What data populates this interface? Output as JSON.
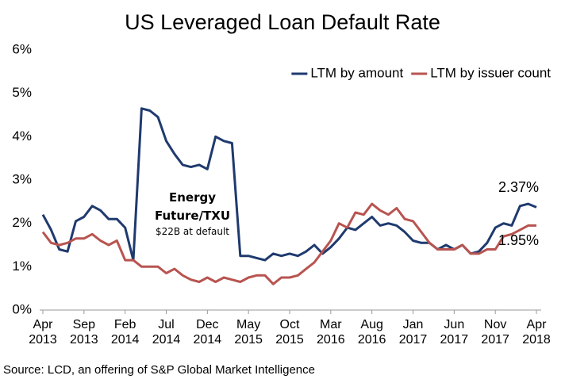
{
  "chart_data": {
    "type": "line",
    "title": "US Leveraged Loan Default Rate",
    "source": "Source: LCD, an offering of S&P Global Market Intelligence",
    "categories": [
      "Apr 2013",
      null,
      null,
      null,
      null,
      "Sep 2013",
      null,
      null,
      null,
      null,
      "Feb 2014",
      null,
      null,
      null,
      null,
      "Jul 2014",
      null,
      null,
      null,
      null,
      "Dec 2014",
      null,
      null,
      null,
      null,
      "May 2015",
      null,
      null,
      null,
      null,
      "Oct 2015",
      null,
      null,
      null,
      null,
      "Mar 2016",
      null,
      null,
      null,
      null,
      "Aug 2016",
      null,
      null,
      null,
      null,
      "Jan 2017",
      null,
      null,
      null,
      null,
      "Jun 2017",
      null,
      null,
      null,
      null,
      "Nov 2017",
      null,
      null,
      null,
      null,
      "Apr 2018"
    ],
    "series": [
      {
        "name": "LTM by amount",
        "color": "#1f3a6e",
        "values": [
          2.2,
          1.85,
          1.4,
          1.35,
          2.05,
          2.15,
          2.4,
          2.3,
          2.1,
          2.1,
          1.9,
          1.15,
          4.65,
          4.6,
          4.45,
          3.9,
          3.6,
          3.35,
          3.3,
          3.35,
          3.25,
          4.0,
          3.9,
          3.85,
          1.25,
          1.25,
          1.2,
          1.15,
          1.3,
          1.25,
          1.3,
          1.25,
          1.35,
          1.5,
          1.3,
          1.45,
          1.65,
          1.9,
          1.85,
          2.0,
          2.15,
          1.95,
          2.0,
          1.95,
          1.8,
          1.6,
          1.55,
          1.55,
          1.4,
          1.5,
          1.4,
          1.5,
          1.3,
          1.35,
          1.55,
          1.9,
          2.0,
          1.95,
          2.4,
          2.45,
          2.37
        ],
        "value_labels": [
          null,
          null,
          null,
          null,
          null,
          null,
          null,
          null,
          null,
          null,
          null,
          null,
          null,
          null,
          null,
          null,
          null,
          null,
          null,
          null,
          null,
          null,
          null,
          null,
          null,
          null,
          null,
          null,
          null,
          null,
          null,
          null,
          null,
          null,
          null,
          null,
          null,
          null,
          null,
          null,
          null,
          null,
          null,
          null,
          null,
          null,
          null,
          null,
          null,
          null,
          null,
          null,
          null,
          null,
          null,
          null,
          null,
          null,
          null,
          null,
          "2.37%"
        ]
      },
      {
        "name": "LTM by issuer count",
        "color": "#b85450",
        "values": [
          1.8,
          1.55,
          1.5,
          1.55,
          1.65,
          1.65,
          1.75,
          1.6,
          1.5,
          1.6,
          1.15,
          1.15,
          1.0,
          1.0,
          1.0,
          0.85,
          0.95,
          0.8,
          0.7,
          0.65,
          0.75,
          0.65,
          0.75,
          0.7,
          0.65,
          0.75,
          0.8,
          0.8,
          0.6,
          0.75,
          0.75,
          0.8,
          0.95,
          1.1,
          1.35,
          1.6,
          2.0,
          1.9,
          2.25,
          2.2,
          2.45,
          2.3,
          2.2,
          2.35,
          2.1,
          2.05,
          1.8,
          1.55,
          1.4,
          1.4,
          1.4,
          1.5,
          1.3,
          1.3,
          1.4,
          1.4,
          1.7,
          1.75,
          1.85,
          1.95,
          1.95
        ],
        "value_labels": [
          null,
          null,
          null,
          null,
          null,
          null,
          null,
          null,
          null,
          null,
          null,
          null,
          null,
          null,
          null,
          null,
          null,
          null,
          null,
          null,
          null,
          null,
          null,
          null,
          null,
          null,
          null,
          null,
          null,
          null,
          null,
          null,
          null,
          null,
          null,
          null,
          null,
          null,
          null,
          null,
          null,
          null,
          null,
          null,
          null,
          null,
          null,
          null,
          null,
          null,
          null,
          null,
          null,
          null,
          null,
          null,
          null,
          null,
          null,
          null,
          "1.95%"
        ]
      }
    ],
    "annotations": [
      {
        "text": "Energy Future/TXU"
      },
      {
        "text": "$22B at default"
      }
    ],
    "ylim": [
      0,
      6
    ],
    "yticks": [
      {
        "value": 0,
        "label": "0%"
      },
      {
        "value": 1,
        "label": "1%"
      },
      {
        "value": 2,
        "label": "2%"
      },
      {
        "value": 3,
        "label": "3%"
      },
      {
        "value": 4,
        "label": "4%"
      },
      {
        "value": 5,
        "label": "5%"
      },
      {
        "value": 6,
        "label": "6%"
      }
    ],
    "grid": false,
    "legend": "upper right"
  }
}
